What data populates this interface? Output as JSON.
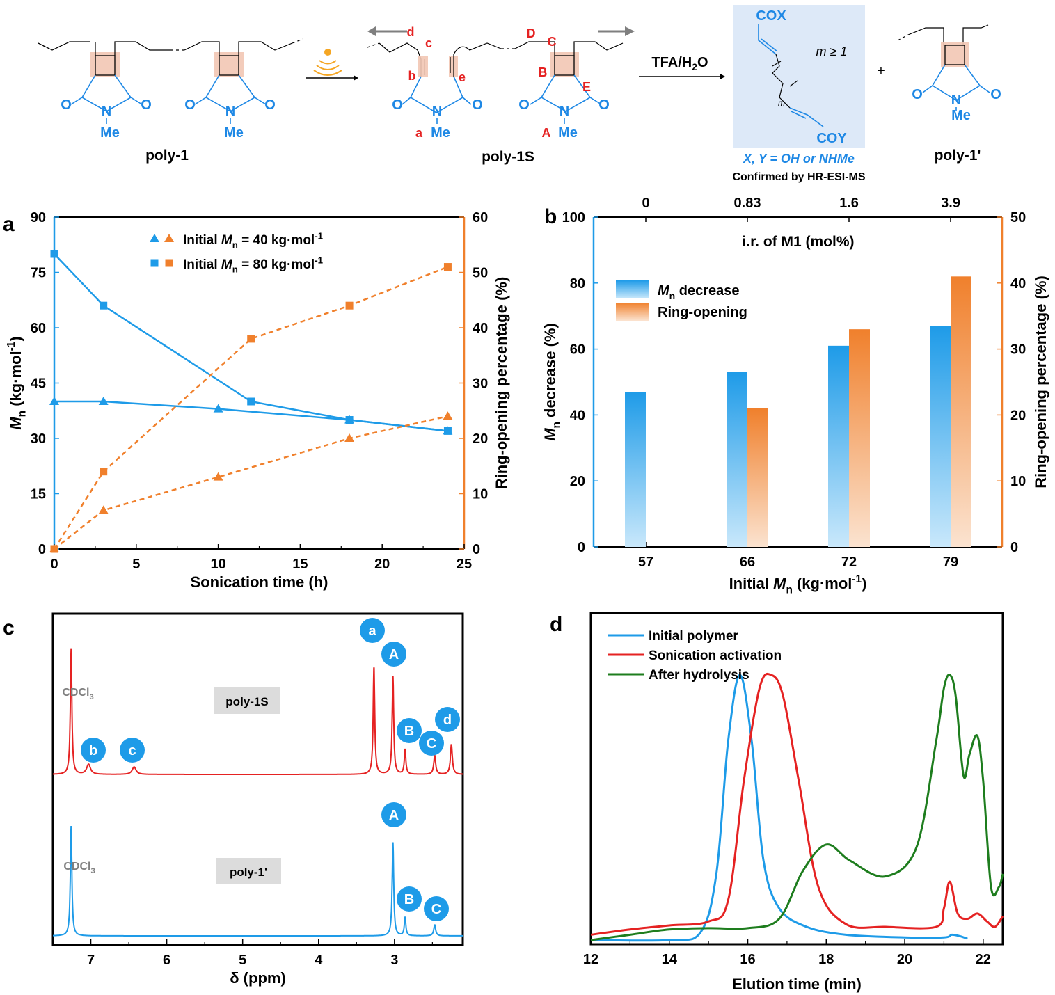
{
  "colors": {
    "blue": "#1e9be8",
    "orange": "#f0802c",
    "red": "#e52222",
    "green": "#1e7d1e",
    "chem_blue": "#1e88e5",
    "label_red": "#e52222",
    "gray": "#7f7f7f",
    "box_fill": "#dde9f8",
    "ring_fill": "#f2c6b4"
  },
  "scheme": {
    "poly1_label": "poly-1",
    "poly1s_label": "poly-1S",
    "poly1p_label": "poly-1'",
    "reagent": "TFA/H",
    "reagent_sub": "2",
    "reagent_tail": "O",
    "plus": "+",
    "cox": "COX",
    "coy": "COY",
    "m_condition": "m ≥ 1",
    "m_small": "m",
    "xy_note": "X, Y = OH or NHMe",
    "confirmed": "Confirmed by HR-ESI-MS",
    "atoms": {
      "O": "O",
      "N": "N",
      "Me": "Me"
    },
    "site_labels": [
      "a",
      "b",
      "c",
      "d",
      "e",
      "A",
      "B",
      "C",
      "D",
      "E"
    ]
  },
  "chart_data": [
    {
      "panel": "a",
      "type": "line",
      "xlabel": "Sonication time (h)",
      "ylabel_left": "M",
      "ylabel_left_sub": "n",
      "ylabel_left_unit": " (kg·mol",
      "ylabel_left_sup": "-1",
      "ylabel_left_end": ")",
      "ylabel_right": "Ring-opening percentage (%)",
      "xlim": [
        0,
        25
      ],
      "ylim_left": [
        0,
        90
      ],
      "ylim_right": [
        0,
        60
      ],
      "xticks": [
        "0",
        "5",
        "10",
        "15",
        "20",
        "25"
      ],
      "yticks_left": [
        "0",
        "15",
        "30",
        "45",
        "60",
        "75",
        "90"
      ],
      "yticks_right": [
        "0",
        "10",
        "20",
        "30",
        "40",
        "50",
        "60"
      ],
      "legend": [
        {
          "label": "Initial ",
          "mn": "M",
          "sub": "n",
          "rest": " = 40 kg·mol",
          "sup": "-1",
          "marker": "triangle"
        },
        {
          "label": "Initial ",
          "mn": "M",
          "sub": "n",
          "rest": " = 80 kg·mol",
          "sup": "-1",
          "marker": "square"
        }
      ],
      "series": [
        {
          "axis": "left",
          "marker": "triangle",
          "color": "#1e9be8",
          "style": "solid",
          "x": [
            0,
            3,
            10,
            18,
            24
          ],
          "y": [
            40,
            40,
            38,
            35,
            32
          ]
        },
        {
          "axis": "left",
          "marker": "square",
          "color": "#1e9be8",
          "style": "solid",
          "x": [
            0,
            3,
            12,
            18,
            24
          ],
          "y": [
            80,
            66,
            40,
            35,
            32
          ]
        },
        {
          "axis": "right",
          "marker": "triangle",
          "color": "#f0802c",
          "style": "dashed",
          "x": [
            0,
            3,
            10,
            18,
            24
          ],
          "y": [
            0,
            7,
            13,
            20,
            24
          ]
        },
        {
          "axis": "right",
          "marker": "square",
          "color": "#f0802c",
          "style": "dashed",
          "x": [
            0,
            3,
            12,
            18,
            24
          ],
          "y": [
            0,
            14,
            38,
            44,
            51
          ]
        }
      ]
    },
    {
      "panel": "b",
      "type": "bar",
      "xlabel": "Initial ",
      "xlabel_mn": "M",
      "xlabel_sub": "n",
      "xlabel_unit": " (kg·mol",
      "xlabel_sup": "-1",
      "xlabel_end": ")",
      "top_axis_label": "i.r. of M1 (mol%)",
      "top_ticks": [
        "0",
        "0.83",
        "1.6",
        "3.9"
      ],
      "ylabel_left": "M",
      "ylabel_left_sub": "n",
      "ylabel_left_rest": " decrease (%)",
      "ylabel_right": "Ring-opening percentage (%)",
      "ylim_left": [
        0,
        100
      ],
      "ylim_right": [
        0,
        50
      ],
      "yticks_left": [
        "0",
        "20",
        "40",
        "60",
        "80",
        "100"
      ],
      "yticks_right": [
        "0",
        "10",
        "20",
        "30",
        "40",
        "50"
      ],
      "categories": [
        "57",
        "66",
        "72",
        "79"
      ],
      "legend": [
        {
          "mn": "M",
          "sub": "n",
          "rest": " decrease"
        },
        {
          "rest": "Ring-opening"
        }
      ],
      "series": [
        {
          "name": "Mn decrease",
          "axis": "left",
          "values": [
            47,
            53,
            61,
            67
          ]
        },
        {
          "name": "Ring-opening",
          "axis": "right",
          "values": [
            0,
            21,
            33,
            41
          ]
        }
      ]
    },
    {
      "panel": "c",
      "type": "line",
      "xlabel": "δ (ppm)",
      "xlim": [
        7.5,
        2.1
      ],
      "xticks": [
        "7",
        "6",
        "5",
        "4",
        "3"
      ],
      "spectra": [
        {
          "name": "poly-1S",
          "color": "#e52222",
          "peaks": [
            {
              "ppm": 7.26,
              "h": 1.0,
              "w": 0.012
            },
            {
              "ppm": 7.03,
              "h": 0.08,
              "w": 0.03
            },
            {
              "ppm": 6.43,
              "h": 0.06,
              "w": 0.03
            },
            {
              "ppm": 3.27,
              "h": 0.87,
              "w": 0.012
            },
            {
              "ppm": 3.02,
              "h": 0.78,
              "w": 0.012
            },
            {
              "ppm": 2.86,
              "h": 0.2,
              "w": 0.012
            },
            {
              "ppm": 2.47,
              "h": 0.15,
              "w": 0.015
            },
            {
              "ppm": 2.25,
              "h": 0.24,
              "w": 0.015
            }
          ],
          "annotations": [
            "b",
            "c",
            "a",
            "A",
            "B",
            "C",
            "d"
          ],
          "solvent": "CDCl",
          "solvent_sub": "3",
          "tag": "poly-1S"
        },
        {
          "name": "poly-1'",
          "color": "#1e9be8",
          "peaks": [
            {
              "ppm": 7.26,
              "h": 1.0,
              "w": 0.012
            },
            {
              "ppm": 3.02,
              "h": 0.85,
              "w": 0.012
            },
            {
              "ppm": 2.86,
              "h": 0.17,
              "w": 0.012
            },
            {
              "ppm": 2.47,
              "h": 0.1,
              "w": 0.015
            }
          ],
          "annotations": [
            "A",
            "B",
            "C"
          ],
          "solvent": "CDCl",
          "solvent_sub": "3",
          "tag": "poly-1'"
        }
      ]
    },
    {
      "panel": "d",
      "type": "line",
      "xlabel": "Elution time (min)",
      "xlim": [
        12,
        22.5
      ],
      "xticks": [
        "12",
        "14",
        "16",
        "18",
        "20",
        "22"
      ],
      "legend": [
        "Initial polymer",
        "Sonication activation",
        "After hydrolysis"
      ],
      "series": [
        {
          "name": "Initial polymer",
          "color": "#1e9be8",
          "x": [
            12,
            14,
            14.8,
            15.2,
            15.5,
            15.8,
            16.1,
            16.4,
            16.8,
            17.5,
            18.5,
            20,
            21,
            21.2,
            21.4,
            21.6
          ],
          "y": [
            0.0,
            0.0,
            0.03,
            0.25,
            0.75,
            1.0,
            0.75,
            0.3,
            0.12,
            0.05,
            0.02,
            0.01,
            0.01,
            0.02,
            0.015,
            0.005
          ]
        },
        {
          "name": "Sonication activation",
          "color": "#e52222",
          "x": [
            12,
            13,
            14,
            15,
            15.5,
            15.9,
            16.3,
            16.6,
            16.9,
            17.3,
            17.8,
            18.5,
            19.5,
            20.8,
            21.0,
            21.15,
            21.35,
            21.6,
            21.85,
            22.1,
            22.3,
            22.5
          ],
          "y": [
            0.02,
            0.04,
            0.055,
            0.07,
            0.15,
            0.6,
            0.95,
            1.0,
            0.92,
            0.6,
            0.2,
            0.06,
            0.05,
            0.05,
            0.12,
            0.22,
            0.1,
            0.08,
            0.1,
            0.07,
            0.05,
            0.09
          ]
        },
        {
          "name": "After hydrolysis",
          "color": "#1e7d1e",
          "x": [
            12,
            13,
            14,
            15,
            16,
            16.8,
            17.4,
            18.0,
            18.6,
            19.5,
            20.3,
            20.8,
            21.0,
            21.15,
            21.3,
            21.5,
            21.65,
            21.85,
            22.0,
            22.2,
            22.4,
            22.5
          ],
          "y": [
            0.0,
            0.02,
            0.04,
            0.045,
            0.045,
            0.08,
            0.26,
            0.36,
            0.3,
            0.24,
            0.35,
            0.75,
            0.95,
            1.0,
            0.92,
            0.62,
            0.7,
            0.77,
            0.6,
            0.2,
            0.2,
            0.25
          ]
        }
      ]
    }
  ],
  "panel_letters": [
    "a",
    "b",
    "c",
    "d"
  ]
}
